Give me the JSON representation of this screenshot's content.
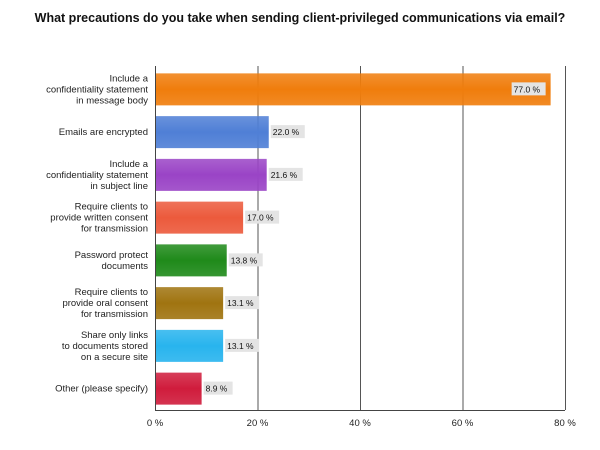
{
  "chart_data": {
    "type": "bar",
    "orientation": "horizontal",
    "title": "What precautions do you take when sending client-privileged communications via email?",
    "categories": [
      [
        "Include a",
        "confidentiality statement",
        "in message body"
      ],
      [
        "Emails are encrypted"
      ],
      [
        "Include a",
        "confidentiality statement",
        "in subject line"
      ],
      [
        "Require clients to",
        "provide written consent",
        "for transmission"
      ],
      [
        "Password protect",
        "documents"
      ],
      [
        "Require clients to",
        "provide oral consent",
        "for transmission"
      ],
      [
        "Share only links",
        "to documents stored",
        "on a secure site"
      ],
      [
        "Other (please specify)"
      ]
    ],
    "values": [
      77.0,
      22.0,
      21.6,
      17.0,
      13.8,
      13.1,
      13.1,
      8.9
    ],
    "data_labels": [
      "77.0 %",
      "22.0 %",
      "21.6 %",
      "17.0 %",
      "13.8 %",
      "13.1 %",
      "13.1 %",
      "8.9 %"
    ],
    "colors": [
      "#f07d0c",
      "#4f7fd6",
      "#9a44c6",
      "#ec5a3c",
      "#1f8a1a",
      "#a07410",
      "#28b4ee",
      "#d01c3c"
    ],
    "xlim": [
      0,
      80
    ],
    "xticks": [
      0,
      20,
      40,
      60,
      80
    ],
    "xtick_labels": [
      "0 %",
      "20 %",
      "40 %",
      "60 %",
      "80 %"
    ],
    "grid": true,
    "legend": "none"
  }
}
